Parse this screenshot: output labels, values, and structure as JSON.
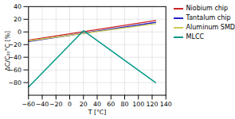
{
  "chart_data": {
    "type": "line",
    "xlabel": "T [°C]",
    "ylabel": "ΔC/C₂₀°C [%]",
    "xlim": [
      -60,
      140
    ],
    "ylim": [
      -100,
      40
    ],
    "xticks": [
      -60,
      -40,
      -20,
      0,
      20,
      40,
      60,
      80,
      100,
      120,
      140
    ],
    "yticks": [
      -80,
      -60,
      -40,
      -20,
      0,
      20,
      40
    ],
    "grid": true,
    "legend": "right",
    "series": [
      {
        "name": "Niobium chip",
        "color": "#cc2222",
        "x": [
          -60,
          125
        ],
        "values": [
          -13,
          18
        ]
      },
      {
        "name": "Tantalum chip",
        "color": "#2222cc",
        "x": [
          -60,
          125
        ],
        "values": [
          -15,
          15
        ]
      },
      {
        "name": "Aluminum SMD",
        "color": "#cccc55",
        "x": [
          -60,
          125
        ],
        "values": [
          -14,
          13
        ]
      },
      {
        "name": "MLCC",
        "color": "#009988",
        "x": [
          -60,
          20,
          125
        ],
        "values": [
          -87,
          2,
          -80
        ]
      }
    ]
  }
}
